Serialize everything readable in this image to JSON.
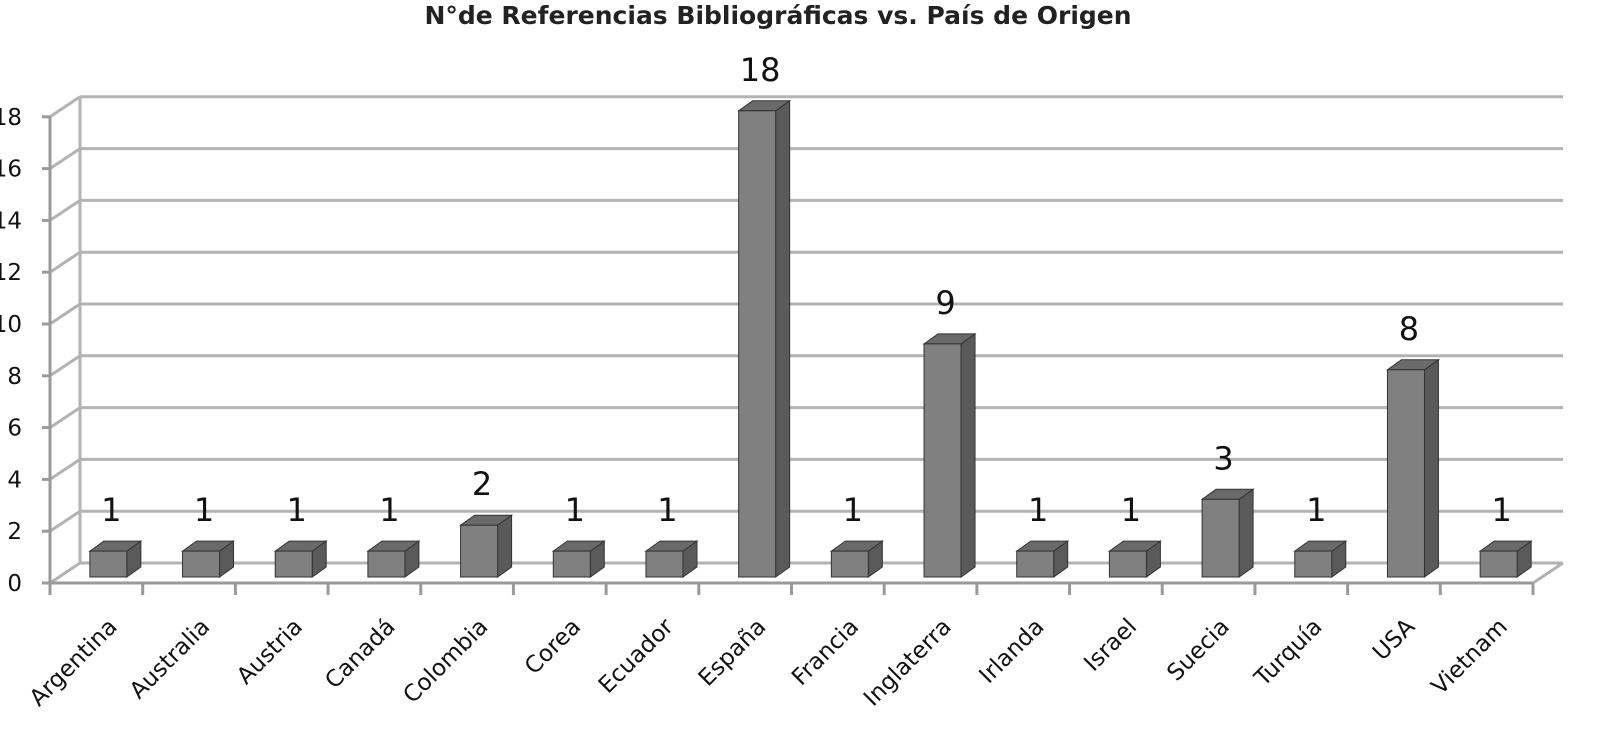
{
  "chart_data": {
    "type": "bar",
    "title": "N°de Referencias Bibliográficas vs. País de Origen",
    "xlabel": "",
    "ylabel": "",
    "ylim": [
      0,
      18
    ],
    "yticks": [
      0,
      2,
      4,
      6,
      8,
      10,
      12,
      14,
      16,
      18
    ],
    "grid": true,
    "style": "3d-column",
    "bar_color": "#808080",
    "categories": [
      "Argentina",
      "Australia",
      "Austria",
      "Canadá",
      "Colombia",
      "Corea",
      "Ecuador",
      "España",
      "Francia",
      "Inglaterra",
      "Irlanda",
      "Israel",
      "Suecia",
      "Turquía",
      "USA",
      "Vietnam"
    ],
    "values": [
      1,
      1,
      1,
      1,
      2,
      1,
      1,
      18,
      1,
      9,
      1,
      1,
      3,
      1,
      8,
      1
    ]
  }
}
